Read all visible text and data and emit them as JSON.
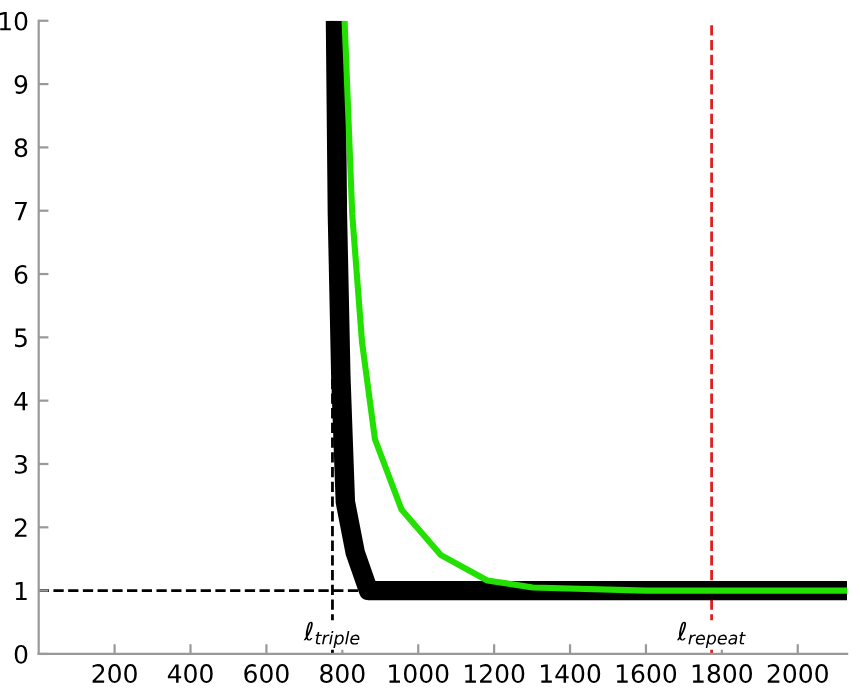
{
  "chart_data": {
    "type": "line",
    "series": [
      {
        "color": "#000000",
        "x": [
          782,
          787,
          796,
          808,
          834,
          869,
          1000,
          1500,
          2130
        ],
        "values": [
          10,
          6.95,
          4.4,
          2.4,
          1.6,
          1.0,
          1.0,
          1.0,
          1.0
        ]
      },
      {
        "color": "#22e000",
        "x": [
          806,
          808,
          826,
          852,
          886,
          956,
          1060,
          1182,
          1302,
          1600,
          2130
        ],
        "values": [
          10,
          9.7,
          6.95,
          4.92,
          3.39,
          2.28,
          1.56,
          1.16,
          1.05,
          1.0,
          1.0
        ]
      }
    ],
    "xlim": [
      0,
      2130
    ],
    "ylim": [
      0,
      10
    ],
    "xticks": [
      200,
      400,
      600,
      800,
      1000,
      1200,
      1400,
      1600,
      1800,
      2000
    ],
    "yticks": [
      0,
      1,
      2,
      3,
      4,
      5,
      6,
      7,
      8,
      9,
      10
    ],
    "ref_lines": [
      {
        "axis": "x",
        "value": 774,
        "label": "ℓ$_{triple}$",
        "color": "#000000",
        "line_style": "dashed"
      },
      {
        "axis": "y",
        "value": 1,
        "color": "#000000",
        "line_style": "dashed"
      },
      {
        "axis": "x",
        "value": 1773,
        "label": "ℓ$_{repeat}$",
        "color": "#e02020",
        "line_style": "dashed"
      }
    ],
    "grid": false,
    "legend": false
  }
}
